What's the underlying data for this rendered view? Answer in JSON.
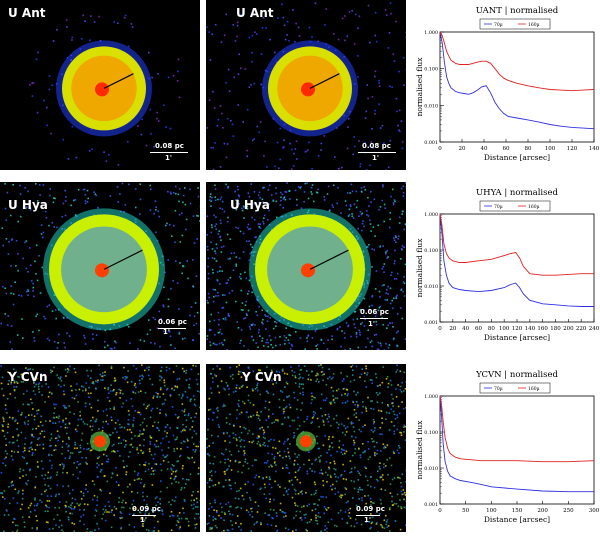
{
  "rows": [
    {
      "star": "U Ant",
      "scale_pc": "0.08 pc",
      "scale_arcsec": "1'",
      "colors": {
        "ring": "#d9e000",
        "inner": "#ff7a00",
        "core": "#ff2a00",
        "halo": "#2040ff",
        "bg_noise": "#7a2fc8"
      }
    },
    {
      "star": "U Hya",
      "scale_pc": "0.06 pc",
      "scale_arcsec": "1'",
      "colors": {
        "ring": "#c8f000",
        "inner": "#2a7bff",
        "core": "#ff4000",
        "halo": "#20d0c0",
        "bg_noise": "#3060ff"
      }
    },
    {
      "star": "Y CVn",
      "scale_pc": "0.09 pc",
      "scale_arcsec": "1'",
      "colors": {
        "ring": "#60c040",
        "inner": "#e0d000",
        "core": "#ff4000",
        "halo": "#30a060",
        "bg_noise": "#1aa0b0"
      }
    }
  ],
  "chart_data": [
    {
      "type": "line",
      "title": "UANT | normalised",
      "xlabel": "Distance [arcsec]",
      "ylabel": "normalised flux",
      "xlim": [
        0,
        140
      ],
      "ylim": [
        0.001,
        1.0
      ],
      "yscale": "log",
      "xticks": [
        "0",
        "20",
        "40",
        "60",
        "80",
        "100",
        "120",
        "140"
      ],
      "yticks": [
        "0.001",
        "0.010",
        "0.100",
        "1.000"
      ],
      "legend": [
        "70µ",
        "160µ"
      ],
      "series": [
        {
          "name": "70µ",
          "color": "#3030e0",
          "x": [
            0,
            2,
            4,
            6,
            8,
            10,
            14,
            18,
            22,
            26,
            30,
            34,
            38,
            42,
            46,
            50,
            54,
            58,
            62,
            70,
            80,
            90,
            100,
            110,
            120,
            130,
            140
          ],
          "y": [
            1.0,
            0.5,
            0.15,
            0.06,
            0.04,
            0.03,
            0.024,
            0.022,
            0.021,
            0.02,
            0.022,
            0.026,
            0.032,
            0.034,
            0.022,
            0.012,
            0.008,
            0.006,
            0.005,
            0.0045,
            0.004,
            0.0035,
            0.003,
            0.0027,
            0.0025,
            0.0024,
            0.0023
          ]
        },
        {
          "name": "160µ",
          "color": "#e02020",
          "x": [
            0,
            2,
            4,
            6,
            8,
            10,
            14,
            18,
            22,
            26,
            30,
            34,
            38,
            42,
            46,
            50,
            54,
            58,
            62,
            70,
            80,
            90,
            100,
            110,
            120,
            130,
            140
          ],
          "y": [
            1.0,
            0.8,
            0.5,
            0.3,
            0.22,
            0.17,
            0.14,
            0.13,
            0.13,
            0.13,
            0.14,
            0.15,
            0.16,
            0.16,
            0.14,
            0.1,
            0.07,
            0.055,
            0.048,
            0.04,
            0.034,
            0.03,
            0.027,
            0.026,
            0.025,
            0.026,
            0.027
          ]
        }
      ]
    },
    {
      "type": "line",
      "title": "UHYA | normalised",
      "xlabel": "Distance [arcsec]",
      "ylabel": "normalised flux",
      "xlim": [
        0,
        240
      ],
      "ylim": [
        0.001,
        1.0
      ],
      "yscale": "log",
      "xticks": [
        "0",
        "20",
        "40",
        "60",
        "80",
        "100",
        "120",
        "140",
        "160",
        "180",
        "200",
        "220",
        "240"
      ],
      "yticks": [
        "0.001",
        "0.010",
        "0.100",
        "1.000"
      ],
      "legend": [
        "70µ",
        "160µ"
      ],
      "series": [
        {
          "name": "70µ",
          "color": "#3030e0",
          "x": [
            0,
            3,
            6,
            10,
            14,
            20,
            30,
            40,
            60,
            80,
            100,
            110,
            118,
            124,
            130,
            140,
            160,
            180,
            200,
            220,
            240
          ],
          "y": [
            1.0,
            0.3,
            0.05,
            0.02,
            0.012,
            0.009,
            0.008,
            0.0075,
            0.007,
            0.0075,
            0.009,
            0.011,
            0.012,
            0.009,
            0.006,
            0.004,
            0.0032,
            0.003,
            0.0028,
            0.0027,
            0.0027
          ]
        },
        {
          "name": "160µ",
          "color": "#e02020",
          "x": [
            0,
            3,
            6,
            10,
            14,
            20,
            30,
            40,
            60,
            80,
            100,
            110,
            118,
            124,
            130,
            140,
            160,
            180,
            200,
            220,
            240
          ],
          "y": [
            1.0,
            0.5,
            0.15,
            0.08,
            0.06,
            0.05,
            0.045,
            0.045,
            0.05,
            0.055,
            0.07,
            0.08,
            0.085,
            0.06,
            0.035,
            0.022,
            0.02,
            0.02,
            0.021,
            0.022,
            0.022
          ]
        }
      ]
    },
    {
      "type": "line",
      "title": "YCVN | normalised",
      "xlabel": "Distance [arcsec]",
      "ylabel": "normalised flux",
      "xlim": [
        0,
        300
      ],
      "ylim": [
        0.001,
        1.0
      ],
      "yscale": "log",
      "xticks": [
        "0",
        "50",
        "100",
        "150",
        "200",
        "250",
        "300"
      ],
      "yticks": [
        "0.001",
        "0.010",
        "0.100",
        "1.000"
      ],
      "legend": [
        "70µ",
        "160µ"
      ],
      "series": [
        {
          "name": "70µ",
          "color": "#3030e0",
          "x": [
            0,
            3,
            6,
            10,
            15,
            20,
            30,
            40,
            60,
            80,
            100,
            150,
            200,
            250,
            300
          ],
          "y": [
            1.0,
            0.3,
            0.05,
            0.015,
            0.008,
            0.006,
            0.005,
            0.0045,
            0.004,
            0.0035,
            0.003,
            0.0026,
            0.0023,
            0.0022,
            0.0022
          ]
        },
        {
          "name": "160µ",
          "color": "#e02020",
          "x": [
            0,
            3,
            6,
            10,
            15,
            20,
            30,
            40,
            60,
            80,
            100,
            150,
            200,
            250,
            300
          ],
          "y": [
            1.0,
            0.6,
            0.2,
            0.07,
            0.035,
            0.025,
            0.02,
            0.018,
            0.017,
            0.016,
            0.016,
            0.016,
            0.015,
            0.015,
            0.016
          ]
        }
      ]
    }
  ]
}
